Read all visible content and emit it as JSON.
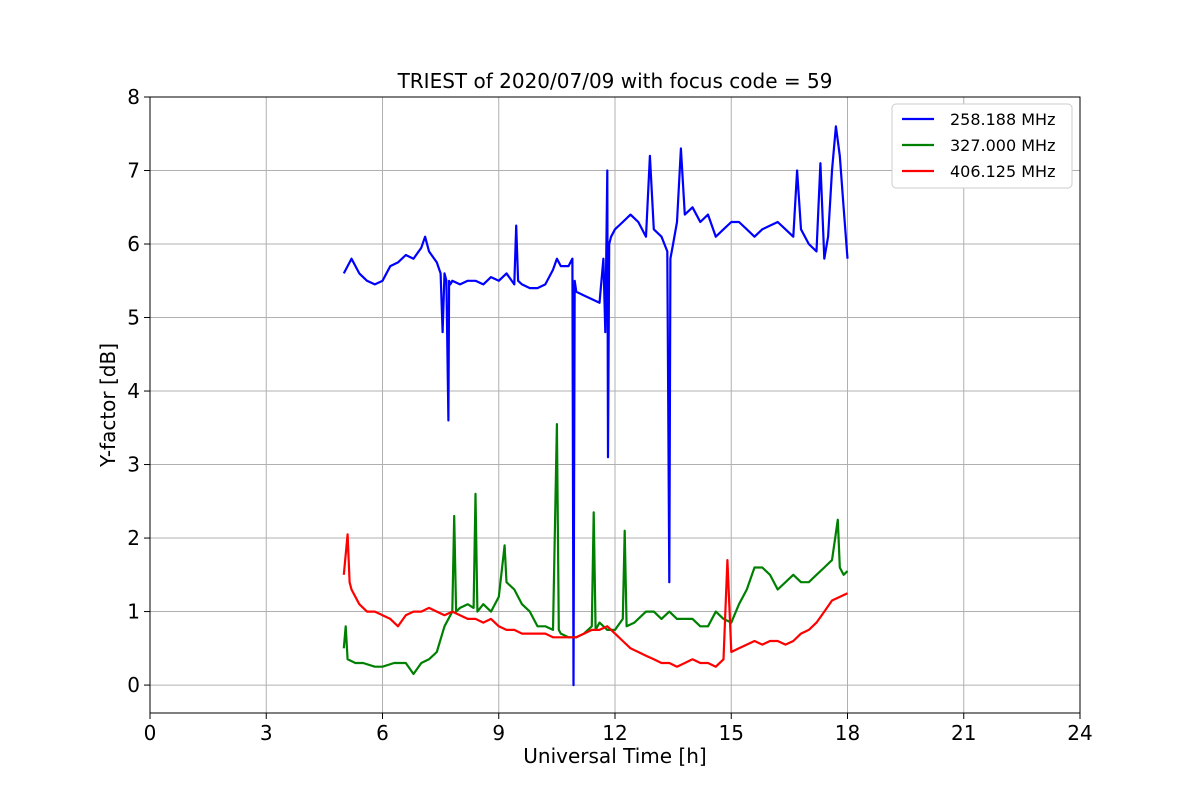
{
  "chart_data": {
    "type": "line",
    "title": "TRIEST of 2020/07/09 with focus code = 59",
    "xlabel": "Universal Time [h]",
    "ylabel": "Y-factor [dB]",
    "xlim": [
      0,
      24
    ],
    "ylim": [
      -0.38,
      8
    ],
    "xticks": [
      0,
      3,
      6,
      9,
      12,
      15,
      18,
      21,
      24
    ],
    "yticks": [
      0,
      1,
      2,
      3,
      4,
      5,
      6,
      7,
      8
    ],
    "grid": true,
    "legend_position": "top-right",
    "series": [
      {
        "name": "258.188 MHz",
        "color": "#0000ff",
        "x": [
          5.0,
          5.2,
          5.4,
          5.6,
          5.8,
          6.0,
          6.2,
          6.4,
          6.6,
          6.8,
          7.0,
          7.1,
          7.2,
          7.4,
          7.5,
          7.55,
          7.6,
          7.65,
          7.7,
          7.72,
          7.75,
          7.8,
          8.0,
          8.2,
          8.4,
          8.6,
          8.8,
          9.0,
          9.2,
          9.4,
          9.45,
          9.5,
          9.6,
          9.8,
          10.0,
          10.2,
          10.4,
          10.5,
          10.6,
          10.8,
          10.9,
          10.93,
          10.96,
          11.0,
          11.2,
          11.4,
          11.6,
          11.7,
          11.75,
          11.8,
          11.82,
          11.85,
          11.9,
          12.0,
          12.2,
          12.4,
          12.6,
          12.8,
          12.9,
          13.0,
          13.2,
          13.35,
          13.4,
          13.43,
          13.5,
          13.6,
          13.7,
          13.8,
          14.0,
          14.2,
          14.4,
          14.6,
          14.8,
          15.0,
          15.2,
          15.4,
          15.6,
          15.8,
          16.0,
          16.2,
          16.4,
          16.6,
          16.7,
          16.8,
          17.0,
          17.2,
          17.3,
          17.4,
          17.5,
          17.6,
          17.7,
          17.8,
          17.9,
          18.0
        ],
        "y": [
          5.6,
          5.8,
          5.6,
          5.5,
          5.45,
          5.5,
          5.7,
          5.75,
          5.85,
          5.8,
          5.95,
          6.1,
          5.9,
          5.75,
          5.6,
          4.8,
          5.6,
          5.5,
          3.6,
          5.5,
          5.45,
          5.5,
          5.45,
          5.5,
          5.5,
          5.45,
          5.55,
          5.5,
          5.6,
          5.45,
          6.25,
          5.5,
          5.45,
          5.4,
          5.4,
          5.45,
          5.65,
          5.8,
          5.7,
          5.7,
          5.8,
          0.0,
          5.5,
          5.35,
          5.3,
          5.25,
          5.2,
          5.8,
          4.8,
          7.0,
          3.1,
          6.0,
          6.1,
          6.2,
          6.3,
          6.4,
          6.3,
          6.1,
          7.2,
          6.2,
          6.1,
          5.9,
          1.4,
          5.8,
          6.0,
          6.3,
          7.3,
          6.4,
          6.5,
          6.3,
          6.4,
          6.1,
          6.2,
          6.3,
          6.3,
          6.2,
          6.1,
          6.2,
          6.25,
          6.3,
          6.2,
          6.1,
          7.0,
          6.2,
          6.0,
          5.9,
          7.1,
          5.8,
          6.1,
          7.0,
          7.6,
          7.2,
          6.5,
          5.8
        ]
      },
      {
        "name": "327.000 MHz",
        "color": "#008000",
        "x": [
          5.0,
          5.05,
          5.1,
          5.3,
          5.5,
          5.8,
          6.0,
          6.3,
          6.6,
          6.8,
          7.0,
          7.2,
          7.4,
          7.6,
          7.8,
          7.85,
          7.9,
          8.0,
          8.2,
          8.35,
          8.4,
          8.45,
          8.6,
          8.8,
          9.0,
          9.15,
          9.2,
          9.4,
          9.6,
          9.8,
          10.0,
          10.2,
          10.4,
          10.5,
          10.55,
          10.6,
          10.8,
          11.0,
          11.2,
          11.4,
          11.45,
          11.5,
          11.6,
          11.8,
          12.0,
          12.2,
          12.25,
          12.3,
          12.5,
          12.8,
          13.0,
          13.2,
          13.4,
          13.6,
          13.8,
          14.0,
          14.2,
          14.4,
          14.6,
          14.8,
          15.0,
          15.2,
          15.4,
          15.6,
          15.8,
          16.0,
          16.2,
          16.4,
          16.6,
          16.8,
          17.0,
          17.2,
          17.4,
          17.6,
          17.75,
          17.8,
          17.9,
          18.0
        ],
        "y": [
          0.5,
          0.8,
          0.35,
          0.3,
          0.3,
          0.25,
          0.25,
          0.3,
          0.3,
          0.15,
          0.3,
          0.35,
          0.45,
          0.8,
          1.0,
          2.3,
          1.0,
          1.05,
          1.1,
          1.05,
          2.6,
          1.0,
          1.1,
          1.0,
          1.2,
          1.9,
          1.4,
          1.3,
          1.1,
          1.0,
          0.8,
          0.8,
          0.75,
          3.55,
          0.75,
          0.7,
          0.65,
          0.65,
          0.7,
          0.8,
          2.35,
          0.75,
          0.85,
          0.75,
          0.75,
          0.9,
          2.1,
          0.8,
          0.85,
          1.0,
          1.0,
          0.9,
          1.0,
          0.9,
          0.9,
          0.9,
          0.8,
          0.8,
          1.0,
          0.9,
          0.85,
          1.1,
          1.3,
          1.6,
          1.6,
          1.5,
          1.3,
          1.4,
          1.5,
          1.4,
          1.4,
          1.5,
          1.6,
          1.7,
          2.25,
          1.6,
          1.5,
          1.55
        ]
      },
      {
        "name": "406.125 MHz",
        "color": "#ff0000",
        "x": [
          5.0,
          5.1,
          5.15,
          5.2,
          5.4,
          5.6,
          5.8,
          6.0,
          6.2,
          6.4,
          6.6,
          6.8,
          7.0,
          7.2,
          7.4,
          7.6,
          7.8,
          8.0,
          8.2,
          8.4,
          8.6,
          8.8,
          9.0,
          9.2,
          9.4,
          9.6,
          9.8,
          10.0,
          10.2,
          10.4,
          10.6,
          10.8,
          11.0,
          11.2,
          11.4,
          11.6,
          11.8,
          12.0,
          12.2,
          12.4,
          12.6,
          12.8,
          13.0,
          13.2,
          13.4,
          13.6,
          13.8,
          14.0,
          14.2,
          14.4,
          14.6,
          14.8,
          14.9,
          15.0,
          15.2,
          15.4,
          15.6,
          15.8,
          16.0,
          16.2,
          16.4,
          16.6,
          16.8,
          17.0,
          17.2,
          17.4,
          17.6,
          17.8,
          18.0
        ],
        "y": [
          1.5,
          2.05,
          1.4,
          1.3,
          1.1,
          1.0,
          1.0,
          0.95,
          0.9,
          0.8,
          0.95,
          1.0,
          1.0,
          1.05,
          1.0,
          0.95,
          1.0,
          0.95,
          0.9,
          0.9,
          0.85,
          0.9,
          0.8,
          0.75,
          0.75,
          0.7,
          0.7,
          0.7,
          0.7,
          0.65,
          0.65,
          0.65,
          0.65,
          0.7,
          0.75,
          0.75,
          0.8,
          0.7,
          0.6,
          0.5,
          0.45,
          0.4,
          0.35,
          0.3,
          0.3,
          0.25,
          0.3,
          0.35,
          0.3,
          0.3,
          0.25,
          0.35,
          1.7,
          0.45,
          0.5,
          0.55,
          0.6,
          0.55,
          0.6,
          0.6,
          0.55,
          0.6,
          0.7,
          0.75,
          0.85,
          1.0,
          1.15,
          1.2,
          1.25
        ]
      }
    ]
  }
}
